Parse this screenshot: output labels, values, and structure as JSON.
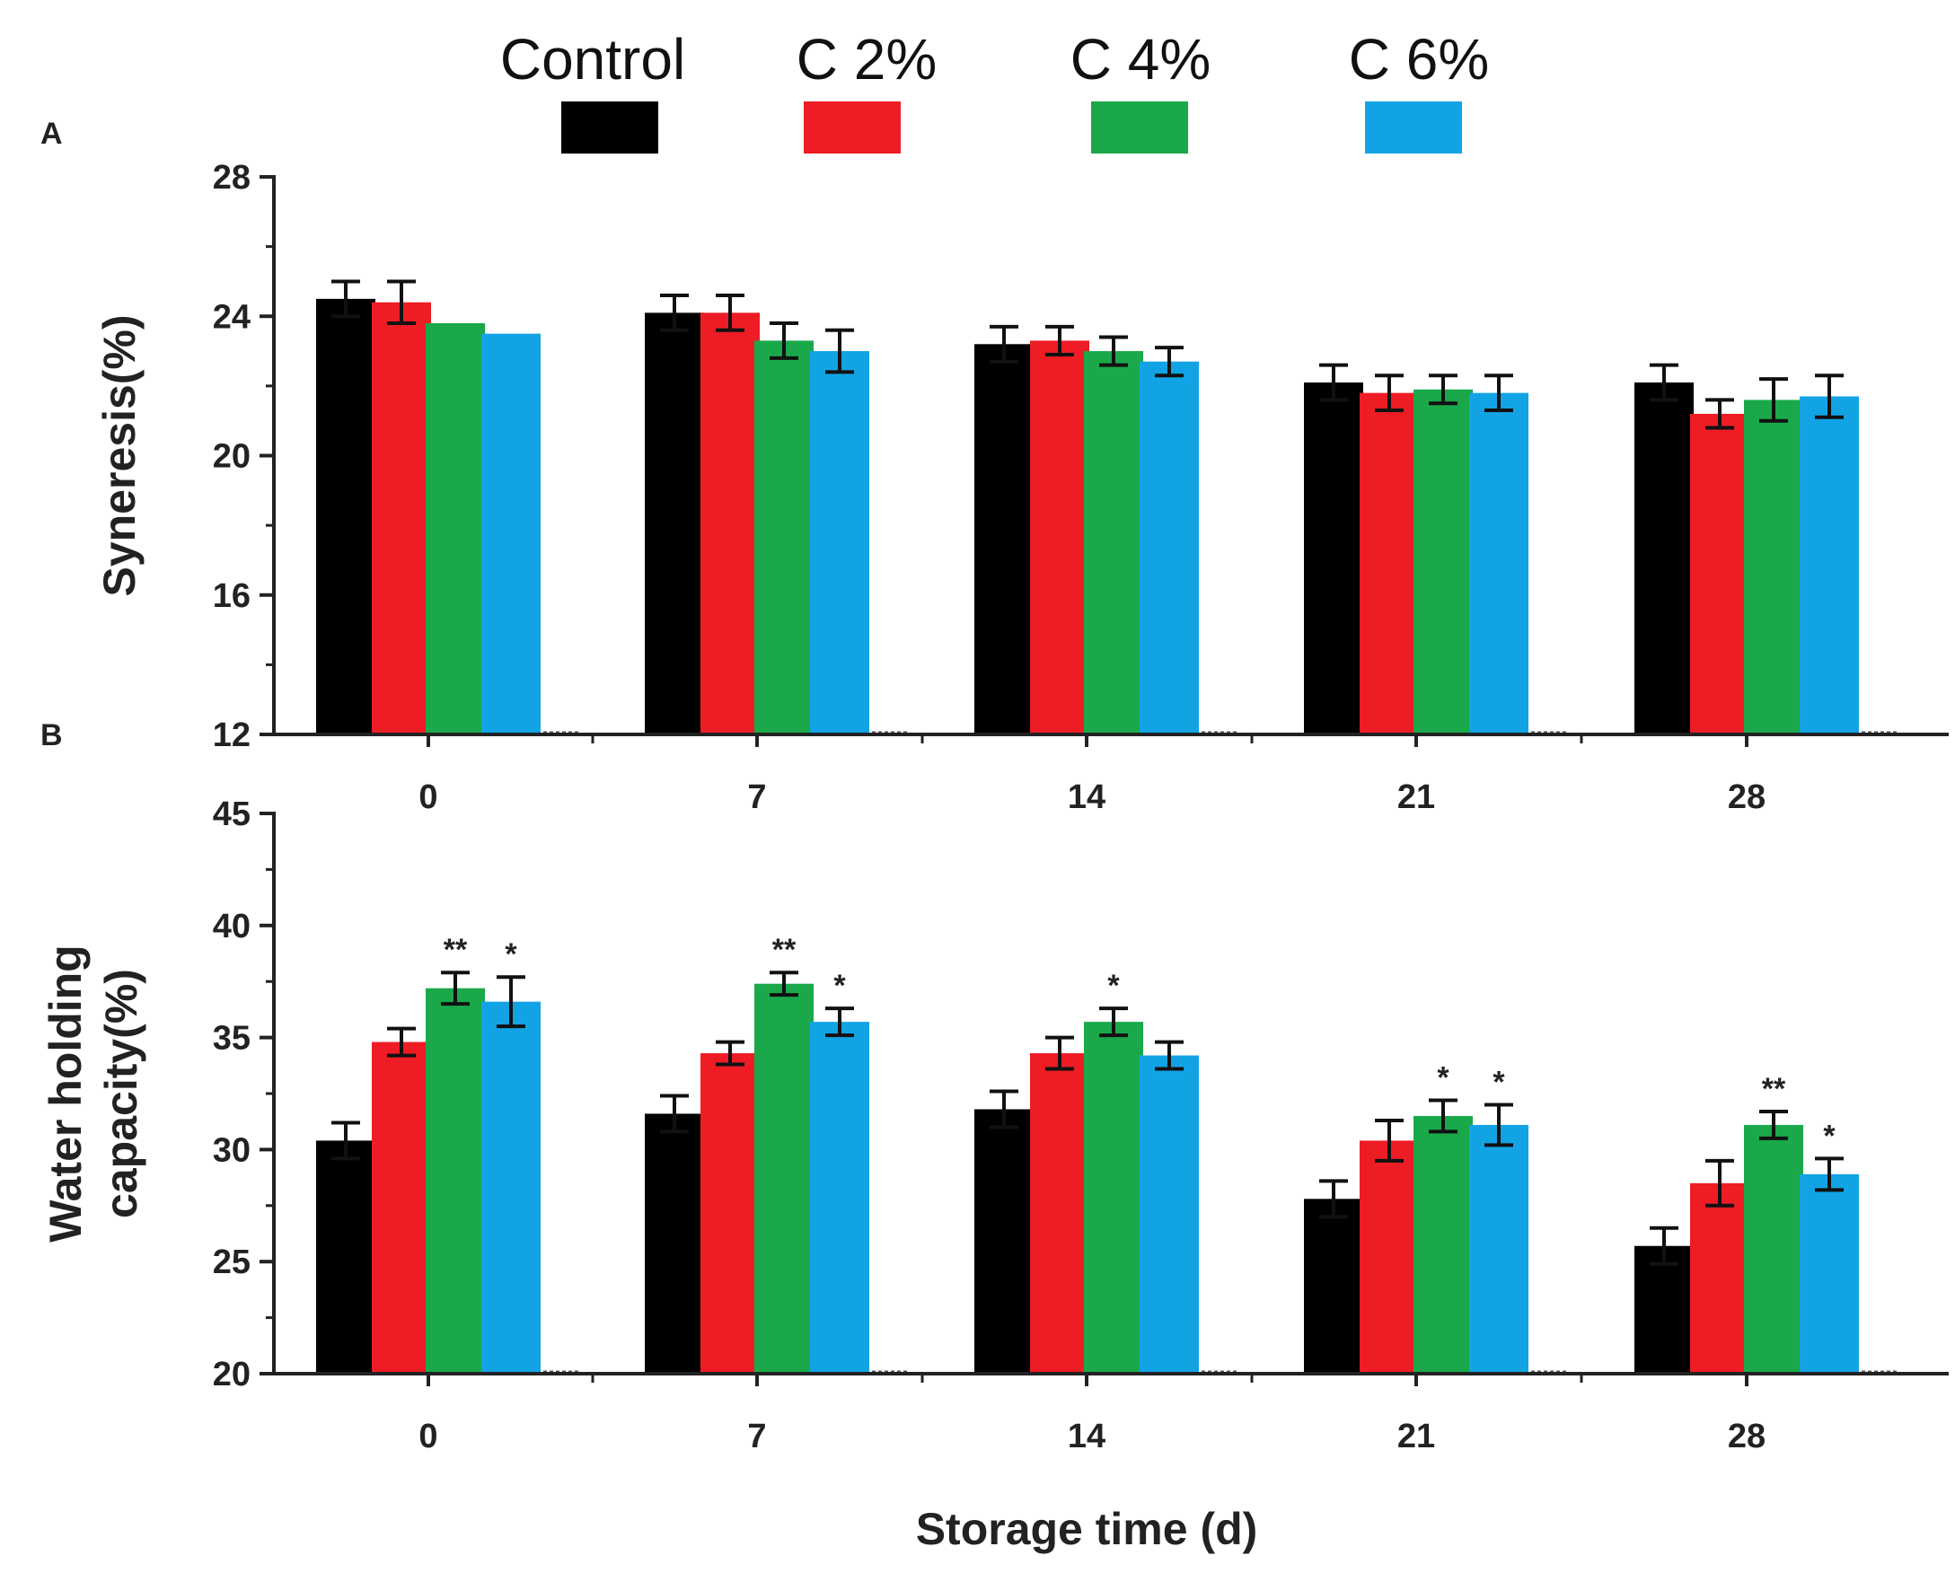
{
  "legend": [
    {
      "label": "Control",
      "color": "#000000"
    },
    {
      "label": "C 2%",
      "color": "#ee1c25"
    },
    {
      "label": "C 4%",
      "color": "#1aa84a"
    },
    {
      "label": "C 6%",
      "color": "#12a3e5"
    }
  ],
  "xlabel": "Storage time (d)",
  "chart_data": [
    {
      "type": "bar",
      "panel": "A",
      "ylabel": "Syneresis(%)",
      "ylim": [
        12,
        28
      ],
      "yticks": [
        "12",
        "16",
        "20",
        "24",
        "28"
      ],
      "categories": [
        "0",
        "7",
        "14",
        "21",
        "28"
      ],
      "series": [
        {
          "name": "Control",
          "values": [
            24.5,
            24.1,
            23.2,
            22.1,
            22.1
          ],
          "errors": [
            0.5,
            0.5,
            0.5,
            0.5,
            0.5
          ]
        },
        {
          "name": "C 2%",
          "values": [
            24.4,
            24.1,
            23.3,
            21.8,
            21.2
          ],
          "errors": [
            0.6,
            0.5,
            0.4,
            0.5,
            0.4
          ]
        },
        {
          "name": "C 4%",
          "values": [
            23.8,
            23.3,
            23.0,
            21.9,
            21.6
          ],
          "errors": [
            0.0,
            0.5,
            0.4,
            0.4,
            0.6
          ]
        },
        {
          "name": "C 6%",
          "values": [
            23.5,
            23.0,
            22.7,
            21.8,
            21.7
          ],
          "errors": [
            0.0,
            0.6,
            0.4,
            0.5,
            0.6
          ]
        }
      ]
    },
    {
      "type": "bar",
      "panel": "B",
      "ylabel_lines": [
        "Water holding",
        "capacity(%)"
      ],
      "ylim": [
        20,
        45
      ],
      "yticks": [
        "20",
        "25",
        "30",
        "35",
        "40",
        "45"
      ],
      "categories": [
        "0",
        "7",
        "14",
        "21",
        "28"
      ],
      "series": [
        {
          "name": "Control",
          "values": [
            30.4,
            31.6,
            31.8,
            27.8,
            25.7
          ],
          "errors": [
            0.8,
            0.8,
            0.8,
            0.8,
            0.8
          ],
          "marks": [
            "",
            "",
            "",
            "",
            ""
          ]
        },
        {
          "name": "C 2%",
          "values": [
            34.8,
            34.3,
            34.3,
            30.4,
            28.5
          ],
          "errors": [
            0.6,
            0.5,
            0.7,
            0.9,
            1.0
          ],
          "marks": [
            "",
            "",
            "",
            "",
            ""
          ]
        },
        {
          "name": "C 4%",
          "values": [
            37.2,
            37.4,
            35.7,
            31.5,
            31.1
          ],
          "errors": [
            0.7,
            0.5,
            0.6,
            0.7,
            0.6
          ],
          "marks": [
            "**",
            "**",
            "*",
            "*",
            "**"
          ]
        },
        {
          "name": "C 6%",
          "values": [
            36.6,
            35.7,
            34.2,
            31.1,
            28.9
          ],
          "errors": [
            1.1,
            0.6,
            0.6,
            0.9,
            0.7
          ],
          "marks": [
            "*",
            "*",
            "",
            "*",
            "*"
          ]
        }
      ]
    }
  ]
}
